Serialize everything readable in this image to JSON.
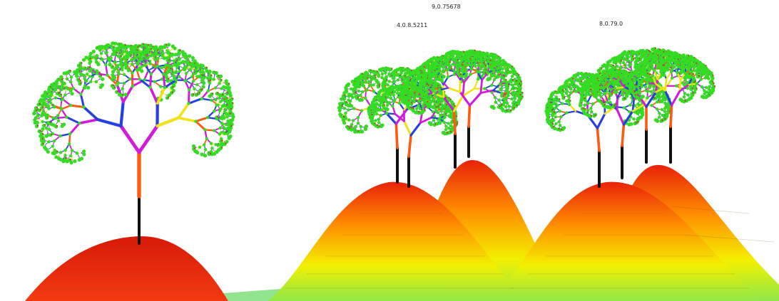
{
  "labels": {
    "top": "9.0.75678",
    "mid_left": "4.0.8.5211",
    "mid_right": "8.0.79.0"
  },
  "colors": {
    "background": "#ffffff",
    "trunk": "#111111",
    "peak": "#e8220a",
    "mid": "#ff8a00",
    "low": "#f4f000",
    "base": "#8fe84a",
    "leaf": "#33dd22",
    "fruit": "#c0392b",
    "branch_orange": "#ff5a10",
    "branch_blue": "#2440e0",
    "branch_magenta": "#d21ad8",
    "branch_yellow": "#f2e21a"
  }
}
